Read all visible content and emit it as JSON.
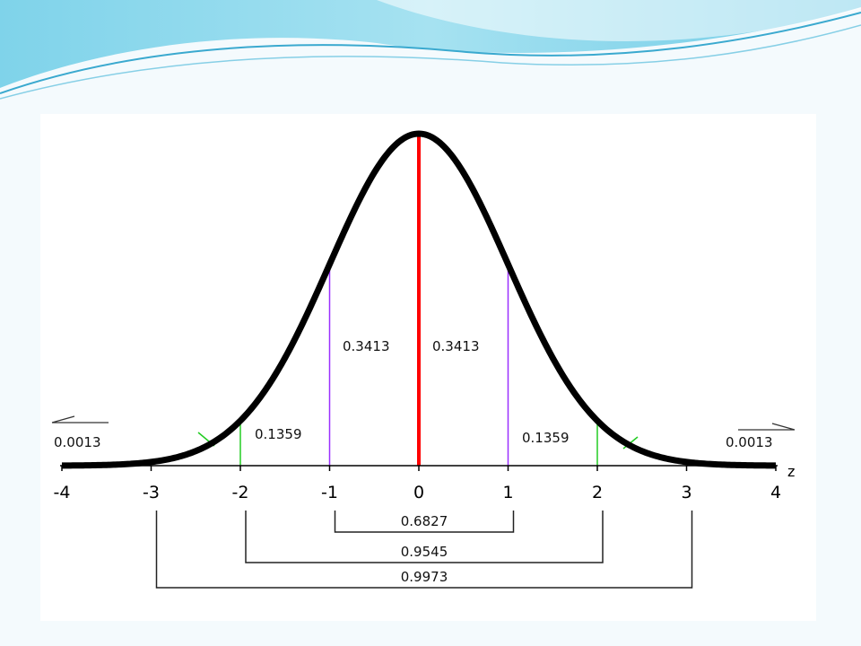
{
  "chart_data": {
    "type": "line",
    "title": "",
    "xlabel": "z",
    "ylabel": "",
    "xlim": [
      -4,
      4
    ],
    "ticks": [
      "-4",
      "-3",
      "-2",
      "-1",
      "0",
      "1",
      "2",
      "3",
      "4"
    ],
    "curve": "standard normal density",
    "colors": {
      "curve": "#000000",
      "mean_line": "#ff0000",
      "one_sigma_lines": "#9b30ff",
      "two_sigma_lines": "#22cc22"
    },
    "region_areas": [
      {
        "label": "0.0013",
        "from": -4,
        "to": -3,
        "value": 0.0013
      },
      {
        "label": "0.1359",
        "from": -2,
        "to": -1,
        "value": 0.1359
      },
      {
        "label": "0.3413",
        "from": -1,
        "to": 0,
        "value": 0.3413
      },
      {
        "label": "0.3413",
        "from": 0,
        "to": 1,
        "value": 0.3413
      },
      {
        "label": "0.1359",
        "from": 1,
        "to": 2,
        "value": 0.1359
      },
      {
        "label": "0.0013",
        "from": 3,
        "to": 4,
        "value": 0.0013
      }
    ],
    "intervals": [
      {
        "label": "0.6827",
        "from": -1,
        "to": 1,
        "value": 0.6827
      },
      {
        "label": "0.9545",
        "from": -2,
        "to": 2,
        "value": 0.9545
      },
      {
        "label": "0.9973",
        "from": -3,
        "to": 3,
        "value": 0.9973
      }
    ]
  }
}
